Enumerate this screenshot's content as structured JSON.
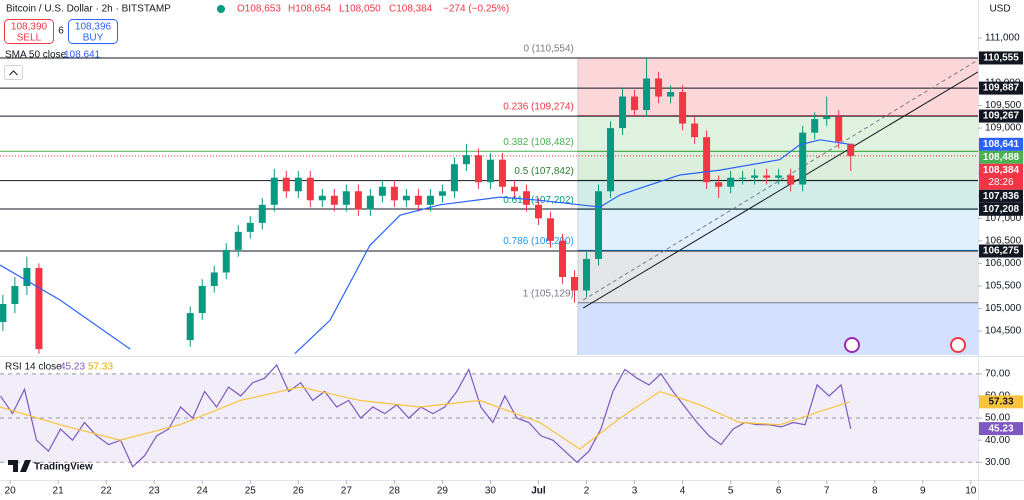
{
  "header": {
    "symbol": "Bitcoin / U.S. Dollar · 2h · BITSTAMP",
    "ohlc": [
      "O108,653",
      "H108,654",
      "L108,050",
      "C108,384"
    ],
    "change": "−274 (−0.25%)",
    "sell_price": "108,390",
    "sell": "SELL",
    "spread": "6",
    "buy_price": "108,396",
    "buy": "BUY",
    "currency": "USD",
    "logo": "TradingView"
  },
  "chart_data": [
    {
      "type": "candlestick",
      "up_color": "#089981",
      "down_color": "#f23645",
      "x": [
        -0.15,
        0.1,
        0.35,
        0.6,
        3.75,
        4,
        4.25,
        4.5,
        4.75,
        5,
        5.25,
        5.5,
        5.75,
        6,
        6.25,
        6.5,
        6.75,
        7,
        7.25,
        7.5,
        7.75,
        8,
        8.25,
        8.5,
        8.75,
        9,
        9.25,
        9.5,
        9.75,
        10,
        10.25,
        10.5,
        10.75,
        11,
        11.25,
        11.5,
        11.75,
        12,
        12.25,
        12.5,
        12.75,
        13,
        13.25,
        13.5,
        13.75,
        14,
        14.25,
        14.5,
        14.75,
        15,
        15.25,
        15.5,
        15.75,
        16,
        16.25,
        16.5,
        16.75,
        17,
        17.25,
        17.5
      ],
      "open": [
        104700,
        105100,
        105500,
        105900,
        104300,
        104900,
        105500,
        105800,
        106300,
        106700,
        106900,
        107300,
        107900,
        107600,
        107900,
        107400,
        107500,
        107300,
        107600,
        107200,
        107500,
        107700,
        107400,
        107500,
        107300,
        107500,
        107600,
        108200,
        108400,
        107800,
        108300,
        107700,
        107600,
        107300,
        107000,
        106500,
        105700,
        105400,
        106100,
        107600,
        109000,
        109700,
        109400,
        110100,
        109700,
        109800,
        109100,
        108800,
        107800,
        107700,
        107900,
        107900,
        107950,
        107900,
        107950,
        107750,
        108900,
        109200,
        109250,
        108653
      ],
      "high": [
        105300,
        105700,
        106150,
        106000,
        105050,
        105650,
        105950,
        106450,
        106850,
        107050,
        107450,
        108100,
        108050,
        108050,
        108050,
        107650,
        107650,
        107750,
        107750,
        107650,
        107850,
        107850,
        107650,
        107650,
        107650,
        107750,
        108350,
        108650,
        108550,
        108450,
        108450,
        107850,
        107750,
        107450,
        107150,
        106650,
        105850,
        106250,
        107750,
        109150,
        109900,
        109850,
        110554,
        110250,
        109950,
        109950,
        109250,
        108950,
        107950,
        108050,
        108050,
        108100,
        108100,
        108100,
        108100,
        109050,
        109350,
        109700,
        109400,
        108654
      ],
      "low": [
        104500,
        104900,
        105300,
        104000,
        104150,
        104750,
        105350,
        105650,
        106150,
        106550,
        106750,
        107150,
        107450,
        107450,
        107250,
        107250,
        107150,
        107150,
        107050,
        107050,
        107350,
        107250,
        107250,
        107150,
        107150,
        107350,
        107450,
        108050,
        107650,
        107650,
        107550,
        107450,
        107150,
        106850,
        106350,
        105550,
        105129,
        105250,
        105950,
        107450,
        108850,
        109250,
        109250,
        109550,
        109550,
        108950,
        108650,
        107650,
        107450,
        107550,
        107750,
        107750,
        107750,
        107750,
        107600,
        107600,
        108750,
        109050,
        108550,
        108050
      ],
      "close": [
        105100,
        105500,
        105900,
        104100,
        104900,
        105500,
        105800,
        106300,
        106700,
        106900,
        107300,
        107900,
        107600,
        107900,
        107400,
        107500,
        107300,
        107600,
        107200,
        107500,
        107700,
        107400,
        107500,
        107300,
        107500,
        107600,
        108200,
        108400,
        107800,
        108300,
        107700,
        107600,
        107300,
        107000,
        106500,
        105700,
        105400,
        106100,
        107600,
        109000,
        109700,
        109400,
        110100,
        109700,
        109800,
        109100,
        108800,
        107800,
        107700,
        107900,
        107900,
        107950,
        107900,
        107950,
        107750,
        108900,
        109200,
        109250,
        108700,
        108384
      ],
      "xlim": [
        -0.21,
        20.15
      ],
      "xticks": [
        {
          "value": 0,
          "label": "20"
        },
        {
          "value": 1,
          "label": "21"
        },
        {
          "value": 2,
          "label": "22"
        },
        {
          "value": 3,
          "label": "23"
        },
        {
          "value": 4,
          "label": "24"
        },
        {
          "value": 5,
          "label": "25"
        },
        {
          "value": 6,
          "label": "26"
        },
        {
          "value": 7,
          "label": "27"
        },
        {
          "value": 8,
          "label": "28"
        },
        {
          "value": 9,
          "label": "29"
        },
        {
          "value": 10,
          "label": "30"
        },
        {
          "value": 11,
          "label": "Jul"
        },
        {
          "value": 12,
          "label": "2"
        },
        {
          "value": 13,
          "label": "3"
        },
        {
          "value": 14,
          "label": "4"
        },
        {
          "value": 15,
          "label": "5"
        },
        {
          "value": 16,
          "label": "6"
        },
        {
          "value": 17,
          "label": "7"
        },
        {
          "value": 18,
          "label": "8"
        },
        {
          "value": 19,
          "label": "9"
        },
        {
          "value": 20,
          "label": "10"
        }
      ],
      "ylim": [
        103970,
        111840
      ],
      "yticks": [
        {
          "value": 104500,
          "label": "104,500"
        },
        {
          "value": 105000,
          "label": "105,000"
        },
        {
          "value": 105500,
          "label": "105,500"
        },
        {
          "value": 106000,
          "label": "106,000"
        },
        {
          "value": 106500,
          "label": "106,500"
        },
        {
          "value": 107000,
          "label": "107,000"
        },
        {
          "value": 107500,
          "label": "107,500"
        },
        {
          "value": 108000,
          "label": "108,000"
        },
        {
          "value": 108500,
          "label": "108,500"
        },
        {
          "value": 109000,
          "label": "109,000"
        },
        {
          "value": 109500,
          "label": "109,500"
        },
        {
          "value": 110000,
          "label": "110,000"
        },
        {
          "value": 110500,
          "label": "110,500"
        },
        {
          "value": 111000,
          "label": "111,000"
        }
      ],
      "series": [
        {
          "name": "SMA 50 close",
          "color": "#2962ff",
          "value_label": "108,641",
          "x": [
            -0.21,
            1.04,
            2.5,
            3.5,
            5.93,
            6.66,
            7.49,
            8.12,
            8.95,
            10.2,
            11.03,
            11.86,
            12.28,
            12.7,
            13.94,
            14.78,
            16.02,
            16.44,
            16.86,
            17.48
          ],
          "values": [
            105966,
            105190,
            104100,
            null,
            104000,
            104740,
            106400,
            107070,
            107300,
            107470,
            107400,
            107300,
            107250,
            107520,
            107960,
            108070,
            108300,
            108630,
            108740,
            108641
          ]
        }
      ],
      "last_price": {
        "value": 108384,
        "label": "108,384",
        "countdown": "28:26",
        "color": "#f23645"
      },
      "price_lines": [
        {
          "value": 110555,
          "label": "110,555",
          "color": "#131722"
        },
        {
          "value": 109887,
          "label": "109,887",
          "color": "#131722"
        },
        {
          "value": 109267,
          "label": "109,267",
          "color": "#131722"
        },
        {
          "value": 108488,
          "label": "108,488",
          "color": "#4caf50"
        },
        {
          "value": 107836,
          "label": "107,836",
          "color": "#131722"
        },
        {
          "value": 107208,
          "label": "107,208",
          "color": "#131722"
        },
        {
          "value": 106275,
          "label": "106,275",
          "color": "#131722"
        }
      ],
      "fibonacci": {
        "start_x": 11.82,
        "levels": [
          {
            "value": 110554,
            "label": "0 (110,554)",
            "color": "#787b86",
            "fill": "rgba(242,54,69,0.2)"
          },
          {
            "value": 109274,
            "label": "0.236 (109,274)",
            "color": "#f23645",
            "fill": "rgba(76,175,80,0.18)"
          },
          {
            "value": 108482,
            "label": "0.382 (108,482)",
            "color": "#4caf50",
            "fill": "rgba(76,175,80,0.2)"
          },
          {
            "value": 107842,
            "label": "0.5 (107,842)",
            "color": "#2e7d32",
            "fill": "rgba(8,153,129,0.18)"
          },
          {
            "value": 107202,
            "label": "0.618 (107,202)",
            "color": "#089981",
            "fill": "rgba(33,150,243,0.14)"
          },
          {
            "value": 106290,
            "label": "0.786 (106,290)",
            "color": "#2196f3",
            "fill": "rgba(120,123,134,0.2)"
          },
          {
            "value": 105129,
            "label": "1 (105,129)",
            "color": "#787b86",
            "fill": "rgba(41,98,255,0.2)"
          }
        ]
      },
      "trendlines": [
        {
          "x": [
            11.93,
            20.15
          ],
          "values": [
            105011,
            110246
          ],
          "color": "#131722",
          "dash": false
        },
        {
          "x": [
            11.93,
            20.15
          ],
          "values": [
            105188,
            110512
          ],
          "color": "#787b86",
          "dash": true
        }
      ]
    },
    {
      "type": "line",
      "title": "RSI 14 close",
      "ylim": [
        22,
        77.6
      ],
      "yticks": [
        {
          "value": 30,
          "label": "30.00"
        },
        {
          "value": 40,
          "label": "40.00"
        },
        {
          "value": 50,
          "label": "50.00"
        },
        {
          "value": 60,
          "label": "60.00"
        },
        {
          "value": 70,
          "label": "70.00"
        }
      ],
      "band": [
        30,
        70
      ],
      "series": [
        {
          "color": "#7e57c2",
          "x": [
            -0.2,
            0.05,
            0.3,
            0.55,
            0.8,
            1.05,
            1.3,
            1.55,
            1.8,
            2.05,
            2.3,
            2.55,
            2.8,
            3.05,
            3.3,
            3.55,
            3.8,
            4.05,
            4.3,
            4.55,
            4.8,
            5.05,
            5.3,
            5.55,
            5.8,
            6.05,
            6.3,
            6.55,
            6.8,
            7.05,
            7.3,
            7.55,
            7.8,
            8.05,
            8.3,
            8.55,
            8.8,
            9.05,
            9.3,
            9.55,
            9.8,
            10.05,
            10.3,
            10.55,
            10.8,
            11.05,
            11.3,
            11.55,
            11.8,
            12.05,
            12.3,
            12.55,
            12.8,
            13.05,
            13.3,
            13.55,
            13.8,
            14.05,
            14.3,
            14.55,
            14.8,
            15.05,
            15.3,
            15.55,
            15.8,
            16.05,
            16.3,
            16.55,
            16.8,
            17.05,
            17.3,
            17.5
          ],
          "values": [
            60,
            52,
            63,
            40,
            35,
            45,
            40,
            48,
            42,
            38,
            40,
            28,
            33,
            42,
            45,
            55,
            50,
            62,
            55,
            64,
            60,
            66,
            68,
            74,
            62,
            66,
            58,
            62,
            55,
            58,
            50,
            55,
            52,
            56,
            50,
            55,
            52,
            55,
            62,
            72,
            55,
            48,
            60,
            50,
            48,
            42,
            40,
            35,
            30,
            35,
            45,
            62,
            72,
            68,
            65,
            70,
            62,
            55,
            48,
            42,
            38,
            45,
            48,
            47,
            47,
            46,
            48,
            47,
            65,
            60,
            65,
            45.23
          ]
        },
        {
          "color": "#f9c33c",
          "x": [
            -0.21,
            1.04,
            2.29,
            3.54,
            4.79,
            6.04,
            7.28,
            8.53,
            9.78,
            11.03,
            11.86,
            12.7,
            13.53,
            14.36,
            15.19,
            16.03,
            16.86,
            17.48
          ],
          "values": [
            55,
            47,
            40,
            47,
            58,
            64,
            58,
            55,
            58,
            48,
            36,
            50,
            62,
            56,
            48,
            47,
            53,
            57.33
          ]
        }
      ]
    }
  ]
}
